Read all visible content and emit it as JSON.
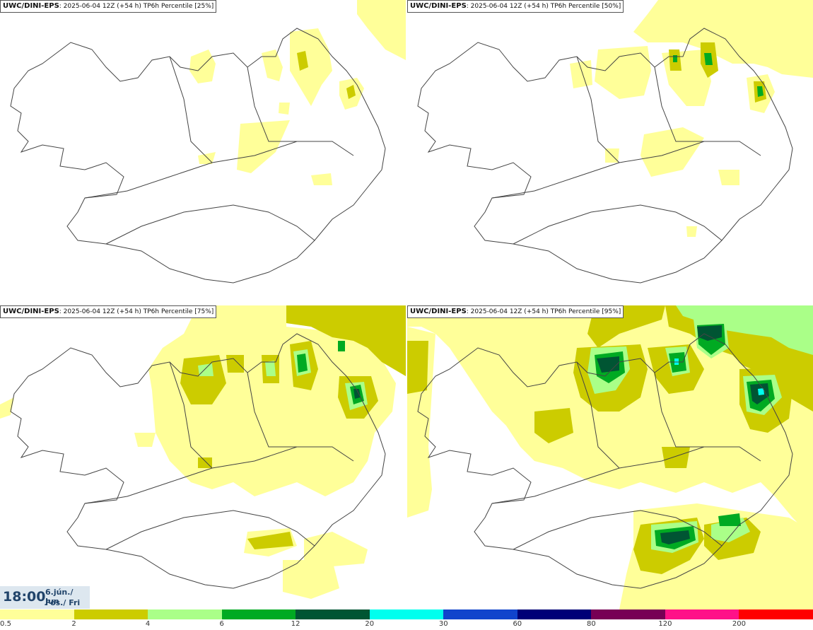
{
  "panels": [
    {
      "source": "UWC/DINI-EPS",
      "run": ": 2025-06-04 12Z (+54 h)",
      "label": " TP6h Percentile [25%]",
      "percentile": 25
    },
    {
      "source": "UWC/DINI-EPS",
      "run": ": 2025-06-04 12Z (+54 h)",
      "label": " TP6h Percentile [50%]",
      "percentile": 50
    },
    {
      "source": "UWC/DINI-EPS",
      "run": ": 2025-06-04 12Z (+54 h)",
      "label": " TP6h Percentile [75%]",
      "percentile": 75
    },
    {
      "source": "UWC/DINI-EPS",
      "run": ": 2025-06-04 12Z (+54 h)",
      "label": " TP6h Percentile [95%]",
      "percentile": 95
    }
  ],
  "valid_time": {
    "time": "18:00",
    "date_line1": "6.jún./ Jun",
    "date_line2": "Fös./ Fri"
  },
  "legend": {
    "colors": [
      "#ffff99",
      "#cccc00",
      "#aaff88",
      "#00aa22",
      "#005533",
      "#00ffee",
      "#1144cc",
      "#000077",
      "#770055",
      "#ff1188",
      "#ff0000"
    ],
    "labels": [
      "0.5",
      "2",
      "4",
      "6",
      "12",
      "20",
      "30",
      "60",
      "80",
      "120",
      "200"
    ]
  }
}
